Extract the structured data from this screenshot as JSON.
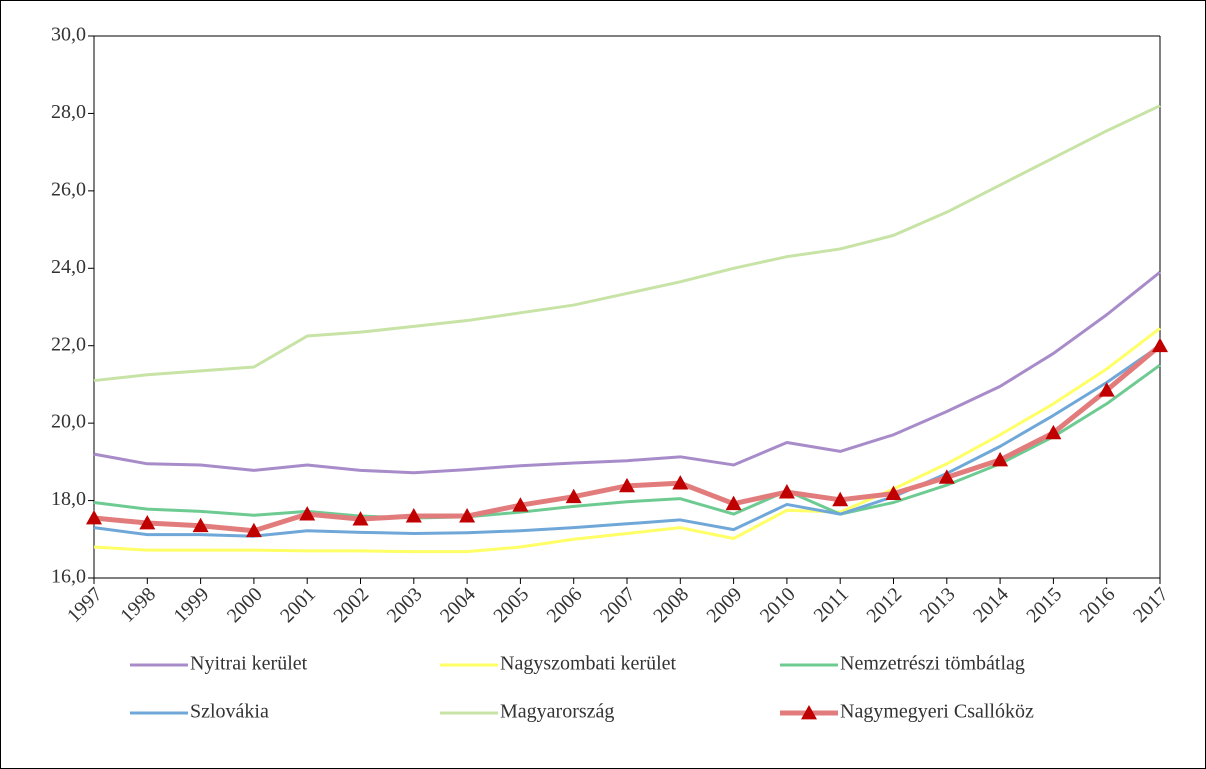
{
  "chart_data": {
    "type": "line",
    "categories": [
      "1997",
      "1998",
      "1999",
      "2000",
      "2001",
      "2002",
      "2003",
      "2004",
      "2005",
      "2006",
      "2007",
      "2008",
      "2009",
      "2010",
      "2011",
      "2012",
      "2013",
      "2014",
      "2015",
      "2016",
      "2017"
    ],
    "ylim": [
      16,
      30
    ],
    "yticks": [
      {
        "value": 16,
        "label": "16,0"
      },
      {
        "value": 18,
        "label": "18,0"
      },
      {
        "value": 20,
        "label": "20,0"
      },
      {
        "value": 22,
        "label": "22,0"
      },
      {
        "value": 24,
        "label": "24,0"
      },
      {
        "value": 26,
        "label": "26,0"
      },
      {
        "value": 28,
        "label": "28,0"
      },
      {
        "value": 30,
        "label": "30,0"
      }
    ],
    "legend": "bottom",
    "series": [
      {
        "name": "Nyitrai kerület",
        "color": "#a88cca",
        "values": [
          19.2,
          18.95,
          18.92,
          18.78,
          18.92,
          18.78,
          18.72,
          18.8,
          18.9,
          18.97,
          19.03,
          19.13,
          18.92,
          19.5,
          19.27,
          19.7,
          20.3,
          20.95,
          21.8,
          22.8,
          23.9
        ]
      },
      {
        "name": "Nagyszombati kerület",
        "color": "#ffff66",
        "values": [
          16.8,
          16.72,
          16.72,
          16.72,
          16.7,
          16.7,
          16.68,
          16.68,
          16.8,
          17.0,
          17.15,
          17.3,
          17.02,
          17.75,
          17.7,
          18.3,
          18.95,
          19.7,
          20.5,
          21.4,
          22.45
        ]
      },
      {
        "name": "Nemzetrészi tömbátlag",
        "color": "#6dcb92",
        "values": [
          17.95,
          17.78,
          17.72,
          17.62,
          17.72,
          17.6,
          17.55,
          17.58,
          17.7,
          17.85,
          17.97,
          18.05,
          17.65,
          18.25,
          17.65,
          17.95,
          18.4,
          18.95,
          19.65,
          20.5,
          21.5
        ]
      },
      {
        "name": "Szlovákia",
        "color": "#6fa8d8",
        "values": [
          17.3,
          17.12,
          17.12,
          17.08,
          17.22,
          17.18,
          17.15,
          17.17,
          17.22,
          17.3,
          17.4,
          17.5,
          17.25,
          17.9,
          17.65,
          18.1,
          18.7,
          19.4,
          20.2,
          21.05,
          22.0
        ]
      },
      {
        "name": "Magyarország",
        "color": "#c8e3a6",
        "values": [
          21.1,
          21.25,
          21.35,
          21.45,
          22.25,
          22.35,
          22.5,
          22.65,
          22.85,
          23.05,
          23.35,
          23.65,
          24.0,
          24.3,
          24.5,
          24.85,
          25.45,
          26.15,
          26.85,
          27.55,
          28.2
        ]
      },
      {
        "name": "Nagymegyeri Csallóköz",
        "color": "#e27c7c",
        "marker_color": "#c00000",
        "marker": "triangle",
        "values": [
          17.55,
          17.42,
          17.35,
          17.22,
          17.65,
          17.52,
          17.6,
          17.6,
          17.88,
          18.1,
          18.38,
          18.45,
          17.92,
          18.22,
          18.02,
          18.18,
          18.6,
          19.05,
          19.75,
          20.85,
          22.0
        ]
      }
    ]
  }
}
